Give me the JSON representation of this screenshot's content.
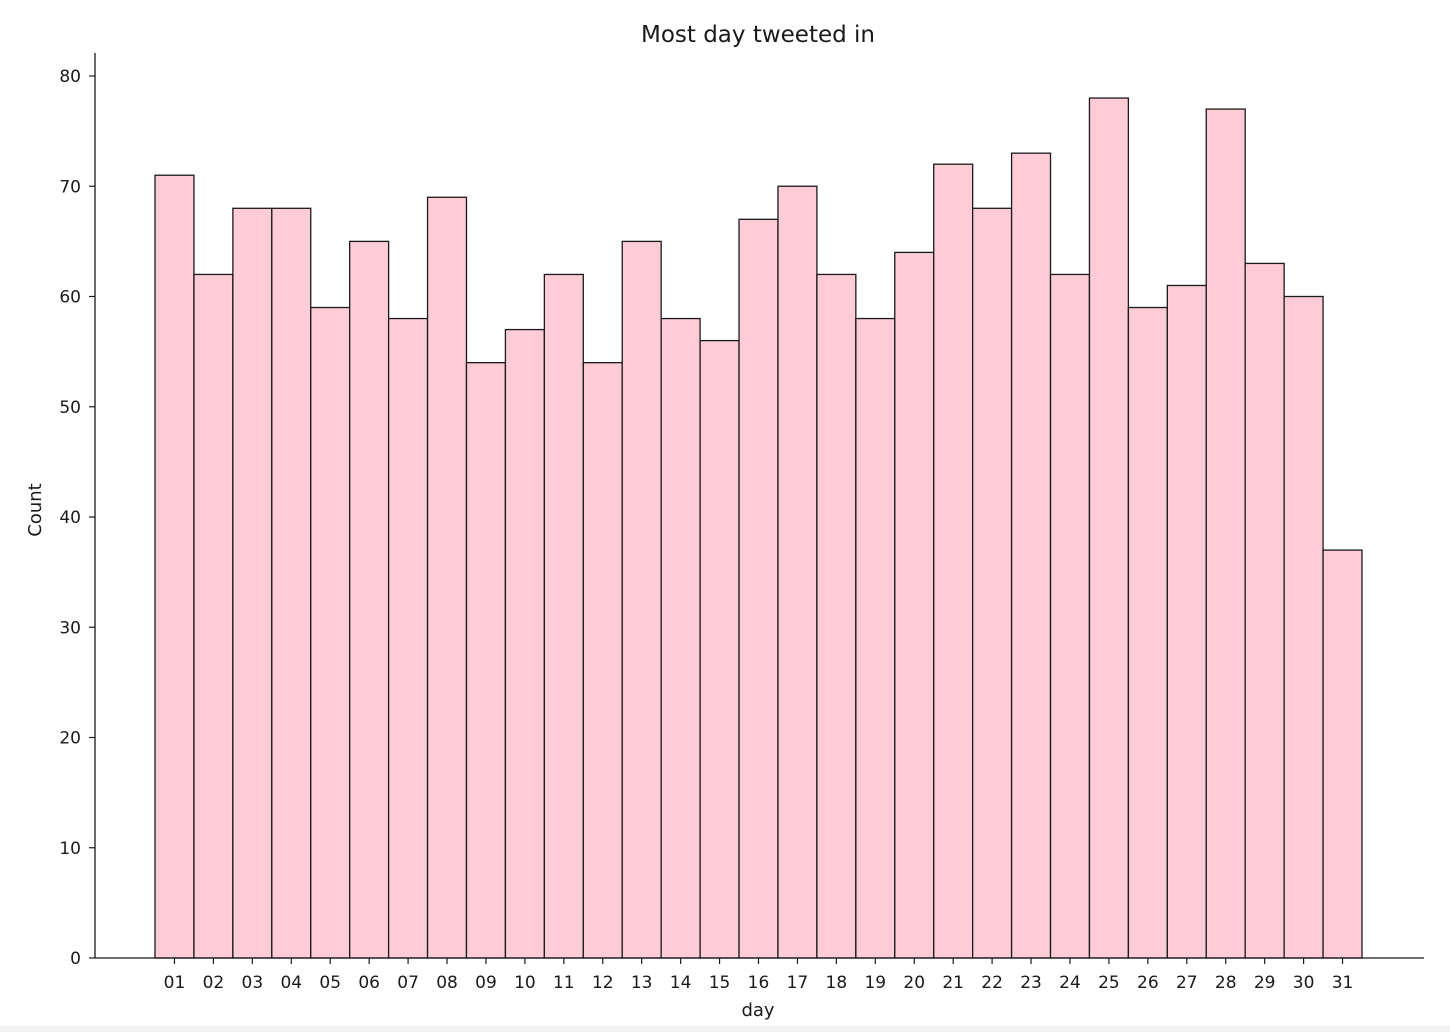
{
  "chart_data": {
    "type": "bar",
    "title": "Most day tweeted in",
    "xlabel": "day",
    "ylabel": "Count",
    "categories": [
      "01",
      "02",
      "03",
      "04",
      "05",
      "06",
      "07",
      "08",
      "09",
      "10",
      "11",
      "12",
      "13",
      "14",
      "15",
      "16",
      "17",
      "18",
      "19",
      "20",
      "21",
      "22",
      "23",
      "24",
      "25",
      "26",
      "27",
      "28",
      "29",
      "30",
      "31"
    ],
    "values": [
      71,
      62,
      68,
      68,
      59,
      65,
      58,
      69,
      54,
      57,
      62,
      54,
      65,
      58,
      56,
      67,
      70,
      62,
      58,
      64,
      72,
      68,
      73,
      62,
      78,
      59,
      61,
      77,
      63,
      60,
      37
    ],
    "ylim": [
      0,
      80
    ],
    "yticks": [
      0,
      10,
      20,
      30,
      40,
      50,
      60,
      70,
      80
    ],
    "grid": false,
    "bar_color": "#fdccd6",
    "edge_color": "#1a1a1a"
  }
}
